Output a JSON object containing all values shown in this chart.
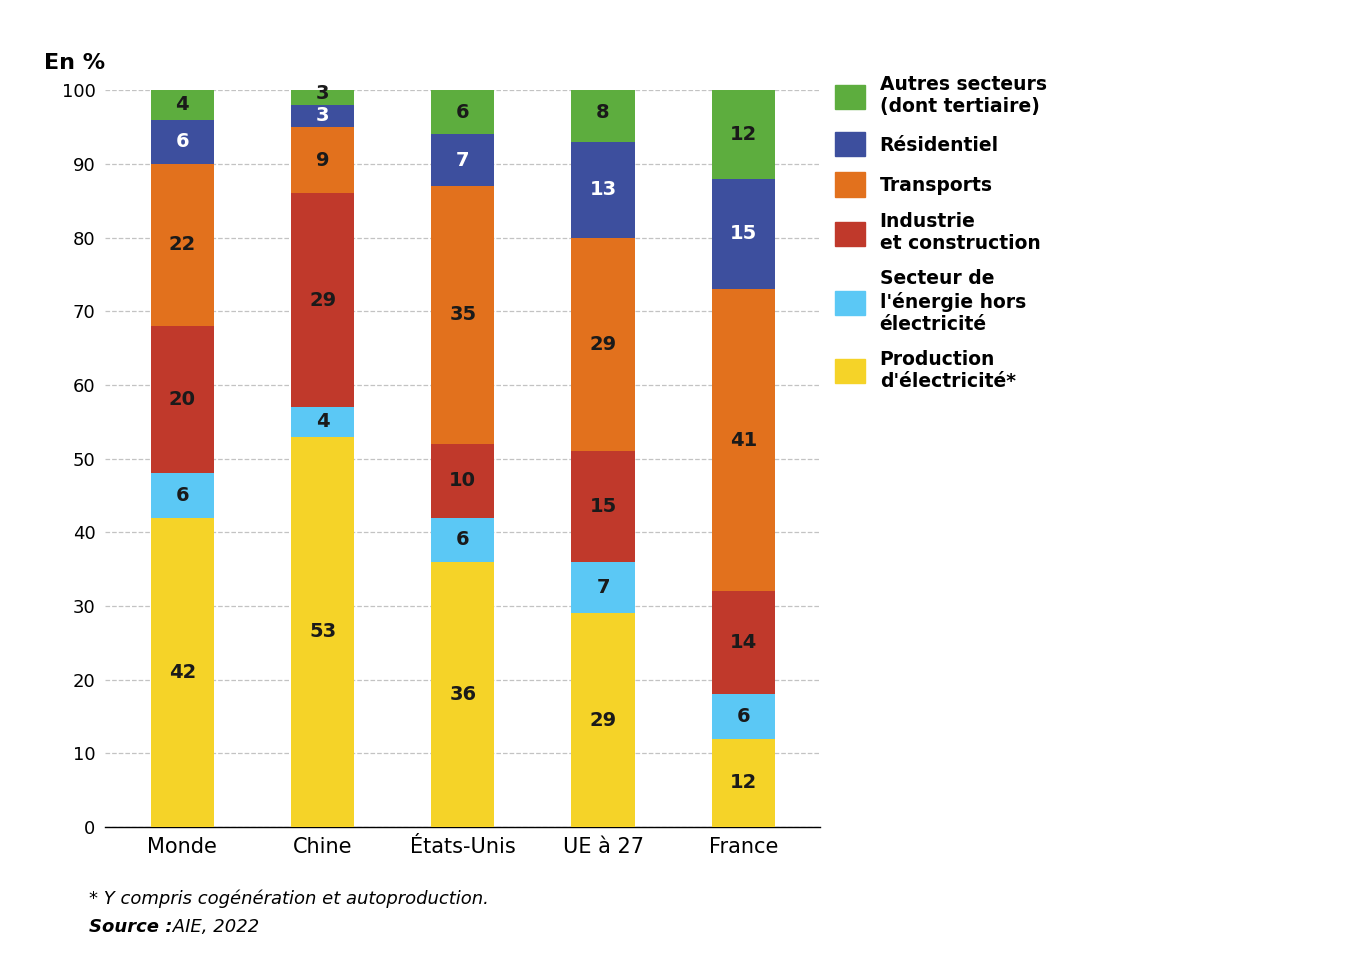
{
  "categories": [
    "Monde",
    "Chine",
    "États-Unis",
    "UE à 27",
    "France"
  ],
  "series": [
    {
      "name": "Production\nd'électricité*",
      "values": [
        42,
        53,
        36,
        29,
        12
      ],
      "color": "#F5D328",
      "label_color": "dark"
    },
    {
      "name": "Secteur de\nl'énergie hors\nélectricité",
      "values": [
        6,
        4,
        6,
        7,
        6
      ],
      "color": "#5BC8F5",
      "label_color": "dark"
    },
    {
      "name": "Industrie\net construction",
      "values": [
        20,
        29,
        10,
        15,
        14
      ],
      "color": "#C0392B",
      "label_color": "dark"
    },
    {
      "name": "Transports",
      "values": [
        22,
        9,
        35,
        29,
        41
      ],
      "color": "#E2711D",
      "label_color": "dark"
    },
    {
      "name": "Résidentiel",
      "values": [
        6,
        3,
        7,
        13,
        15
      ],
      "color": "#3D4F9E",
      "label_color": "light"
    },
    {
      "name": "Autres secteurs\n(dont tertiaire)",
      "values": [
        4,
        3,
        6,
        8,
        12
      ],
      "color": "#5DAD3E",
      "label_color": "dark"
    }
  ],
  "ylabel": "En %",
  "ylim": [
    0,
    100
  ],
  "yticks": [
    0,
    10,
    20,
    30,
    40,
    50,
    60,
    70,
    80,
    90,
    100
  ],
  "footnote1": "* Y compris cogénération et autoproduction.",
  "footnote2_bold": "Source :",
  "footnote2_italic": " AIE, 2022",
  "bar_width": 0.45,
  "label_color_light": "#FFFFFF",
  "label_color_dark": "#1A1A1A",
  "background_color": "#FFFFFF",
  "grid_color": "#AAAAAA"
}
